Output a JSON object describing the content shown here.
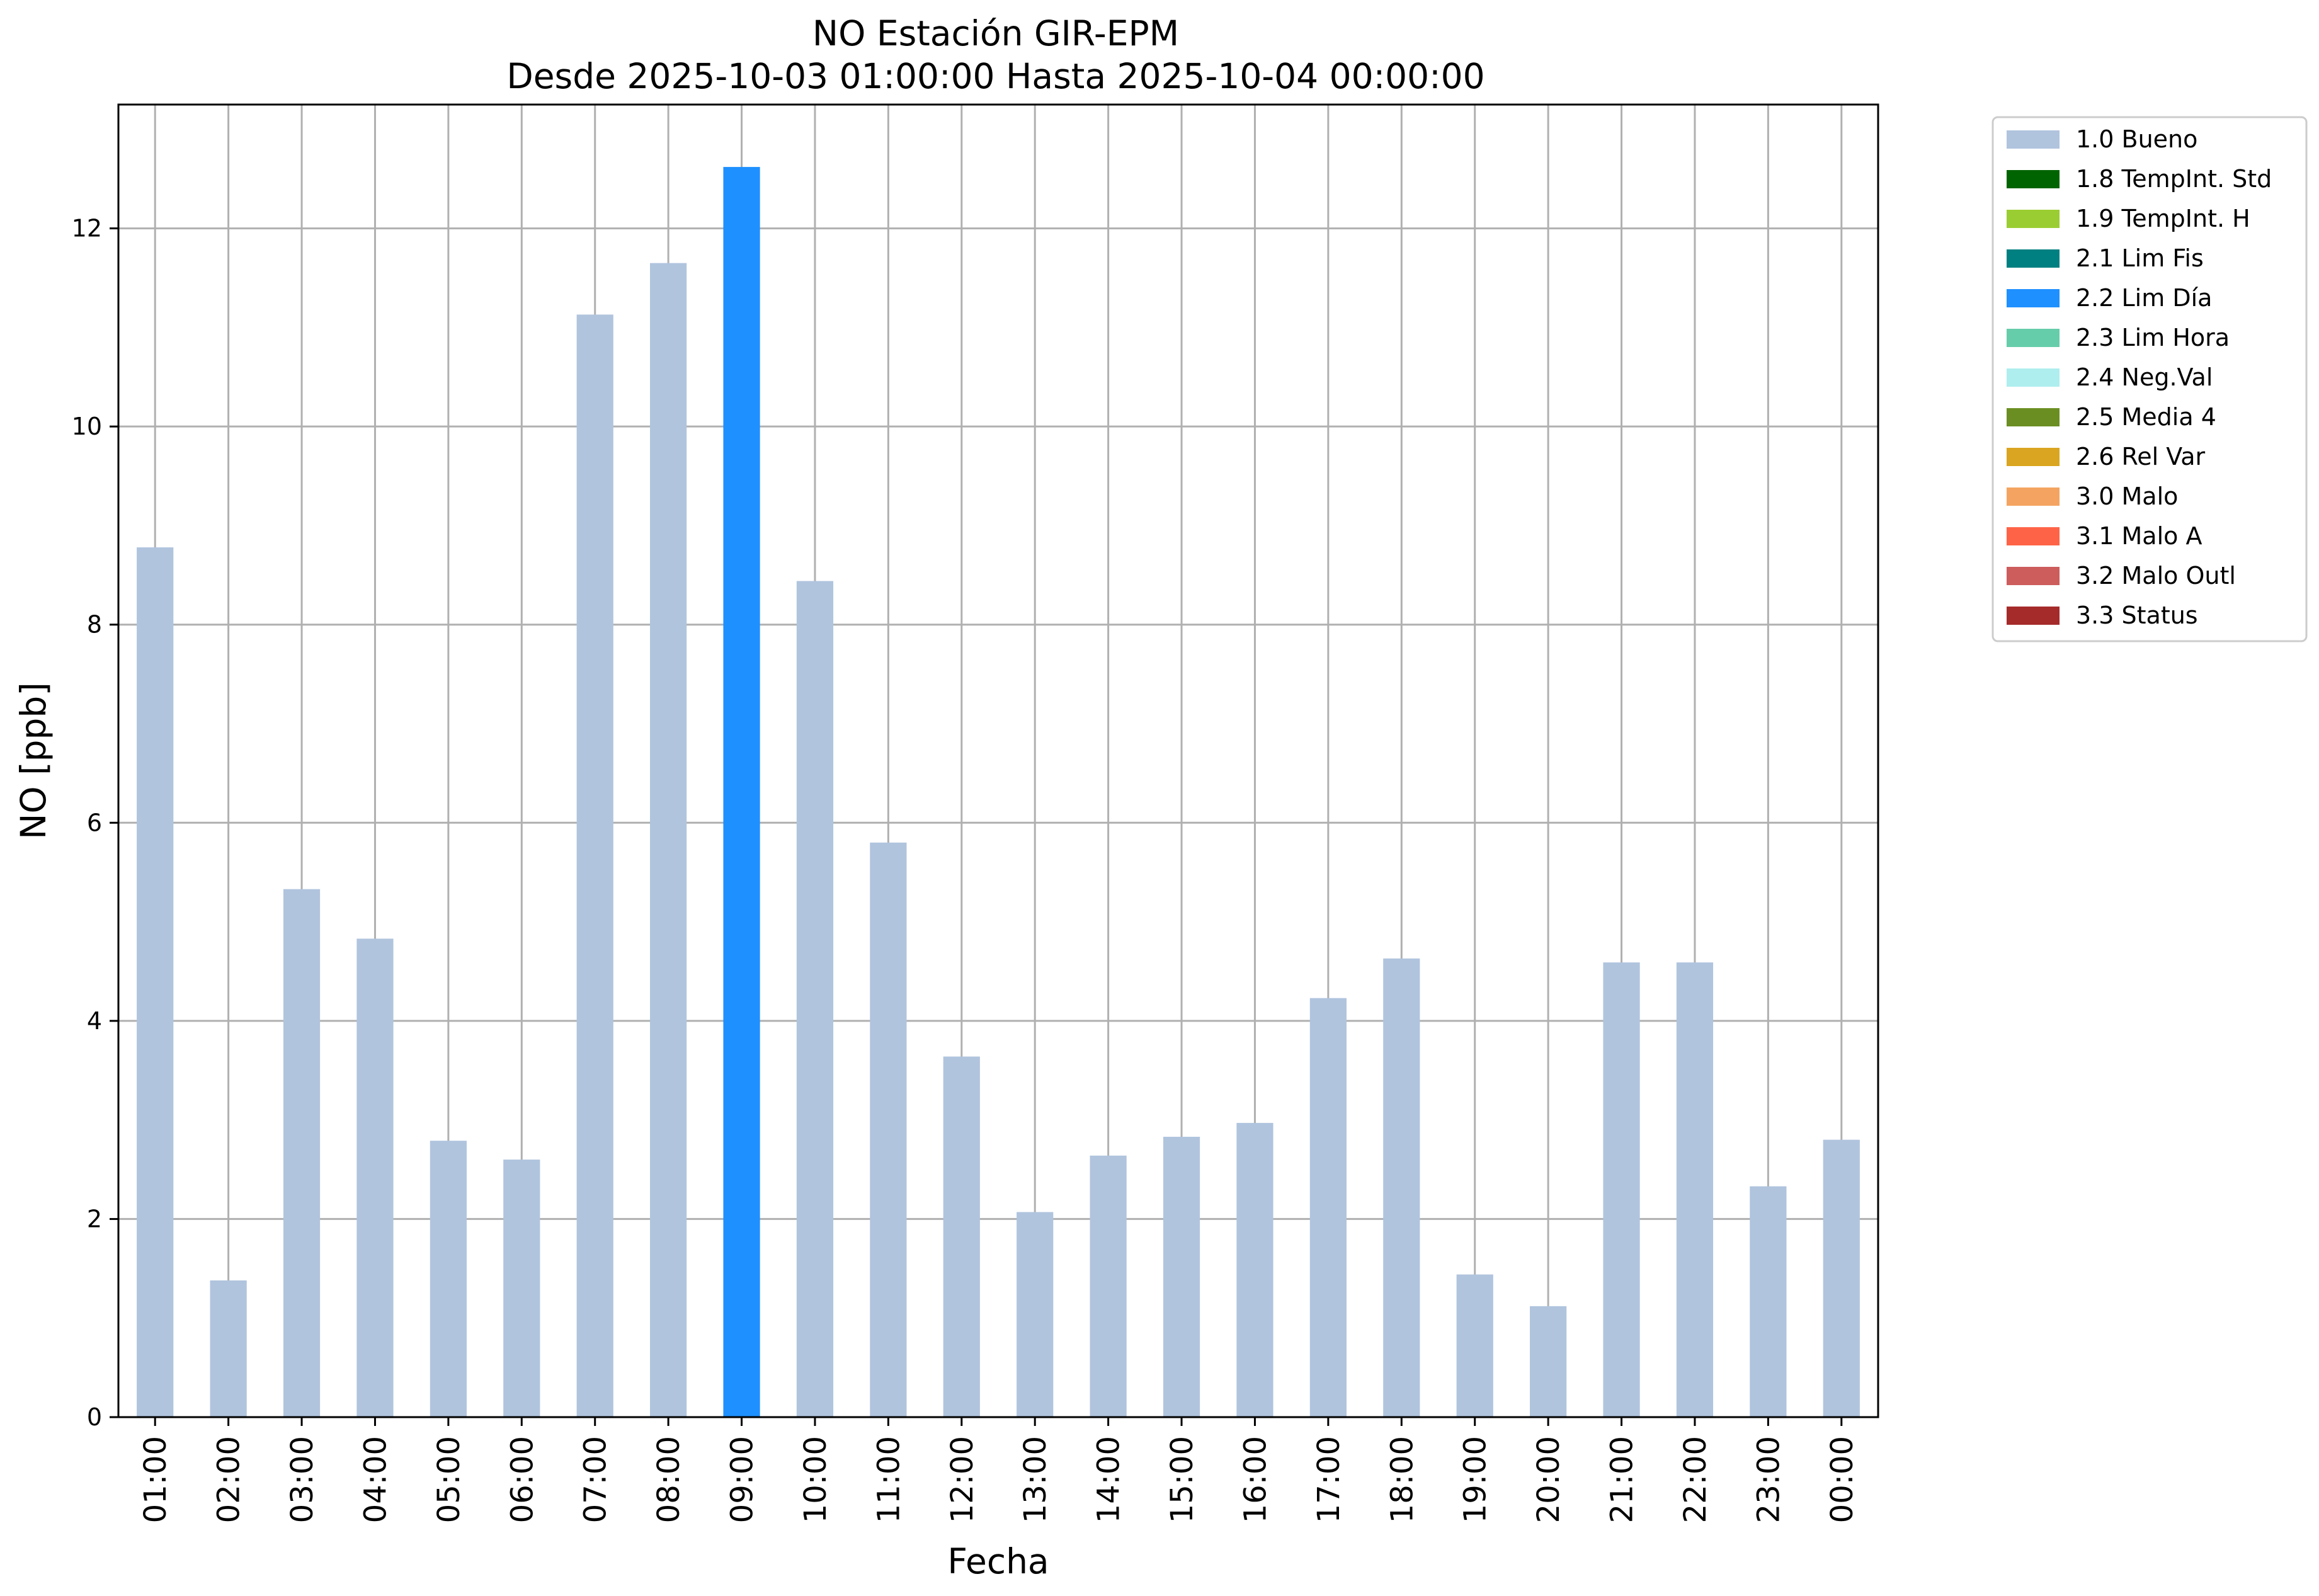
{
  "chart_data": {
    "type": "bar",
    "title": "NO Estación GIR-EPM",
    "subtitle": "Desde 2025-10-03 01:00:00 Hasta 2025-10-04 00:00:00",
    "xlabel": "Fecha",
    "ylabel": "NO [ppb]",
    "ylim": [
      0,
      13.25
    ],
    "yticks": [
      0,
      2,
      4,
      6,
      8,
      10,
      12
    ],
    "grid": true,
    "legend_position": "outside-top-right",
    "categories": [
      "01:00",
      "02:00",
      "03:00",
      "04:00",
      "05:00",
      "06:00",
      "07:00",
      "08:00",
      "09:00",
      "10:00",
      "11:00",
      "12:00",
      "13:00",
      "14:00",
      "15:00",
      "16:00",
      "17:00",
      "18:00",
      "19:00",
      "20:00",
      "21:00",
      "22:00",
      "23:00",
      "00:00"
    ],
    "values": [
      8.78,
      1.38,
      5.33,
      4.83,
      2.79,
      2.6,
      11.13,
      11.65,
      12.62,
      8.44,
      5.8,
      3.64,
      2.07,
      2.64,
      2.83,
      2.97,
      4.23,
      4.63,
      1.44,
      1.12,
      4.59,
      4.59,
      2.33,
      2.8
    ],
    "bar_flags": [
      "1.0 Bueno",
      "1.0 Bueno",
      "1.0 Bueno",
      "1.0 Bueno",
      "1.0 Bueno",
      "1.0 Bueno",
      "1.0 Bueno",
      "1.0 Bueno",
      "2.2 Lim Día",
      "1.0 Bueno",
      "1.0 Bueno",
      "1.0 Bueno",
      "1.0 Bueno",
      "1.0 Bueno",
      "1.0 Bueno",
      "1.0 Bueno",
      "1.0 Bueno",
      "1.0 Bueno",
      "1.0 Bueno",
      "1.0 Bueno",
      "1.0 Bueno",
      "1.0 Bueno",
      "1.0 Bueno",
      "1.0 Bueno"
    ],
    "legend": [
      {
        "label": "1.0 Bueno",
        "color": "#b0c4de"
      },
      {
        "label": "1.8 TempInt. Std",
        "color": "#006400"
      },
      {
        "label": "1.9 TempInt. H",
        "color": "#9acd32"
      },
      {
        "label": "2.1 Lim Fis",
        "color": "#008080"
      },
      {
        "label": "2.2 Lim Día",
        "color": "#1e90ff"
      },
      {
        "label": "2.3 Lim Hora",
        "color": "#66cdaa"
      },
      {
        "label": "2.4 Neg.Val",
        "color": "#afeeee"
      },
      {
        "label": "2.5 Media 4",
        "color": "#6b8e23"
      },
      {
        "label": "2.6 Rel Var",
        "color": "#daa520"
      },
      {
        "label": "3.0 Malo",
        "color": "#f4a460"
      },
      {
        "label": "3.1 Malo A",
        "color": "#ff6347"
      },
      {
        "label": "3.2 Malo Outl",
        "color": "#cd5c5c"
      },
      {
        "label": "3.3 Status",
        "color": "#a52a2a"
      }
    ]
  }
}
